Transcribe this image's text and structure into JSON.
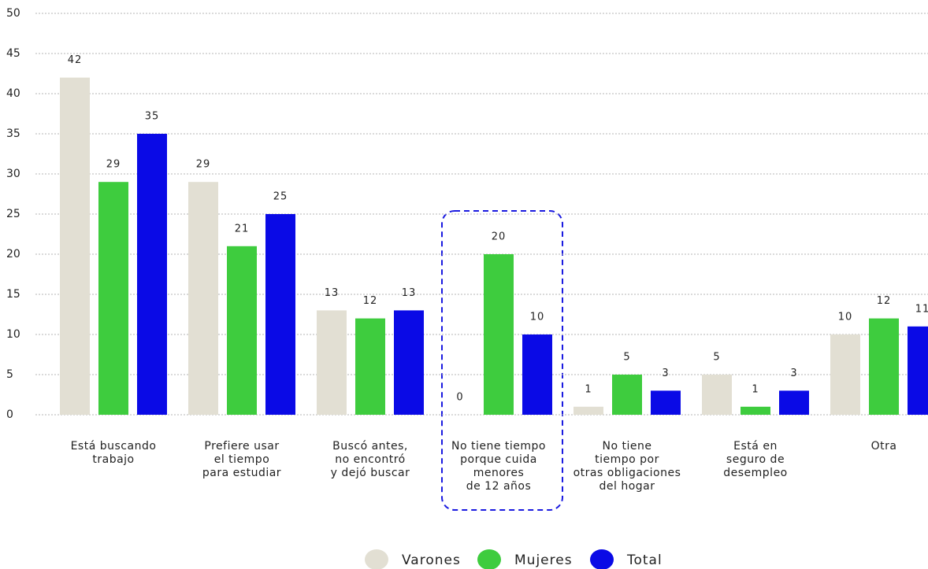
{
  "chart_data": {
    "type": "bar",
    "categories": [
      "Está buscando\ntrabajo",
      "Prefiere usar\nel tiempo\npara estudiar",
      "Buscó antes,\nno encontró\ny dejó buscar",
      "No tiene tiempo\nporque cuida\nmenores\nde 12 años",
      "No tiene\ntiempo por\notras obligaciones\ndel hogar",
      "Está en\nseguro de\ndesempleo",
      "Otra"
    ],
    "series": [
      {
        "name": "Varones",
        "color": "#e2dfd3",
        "values": [
          42,
          29,
          13,
          0,
          1,
          5,
          10
        ]
      },
      {
        "name": "Mujeres",
        "color": "#3ecc3e",
        "values": [
          29,
          21,
          12,
          20,
          5,
          1,
          12
        ]
      },
      {
        "name": "Total",
        "color": "#0a0ae6",
        "values": [
          35,
          25,
          13,
          10,
          3,
          3,
          11
        ]
      }
    ],
    "ylim": [
      0,
      50
    ],
    "yticks": [
      0,
      5,
      10,
      15,
      20,
      25,
      30,
      35,
      40,
      45,
      50
    ],
    "grid": true
  }
}
